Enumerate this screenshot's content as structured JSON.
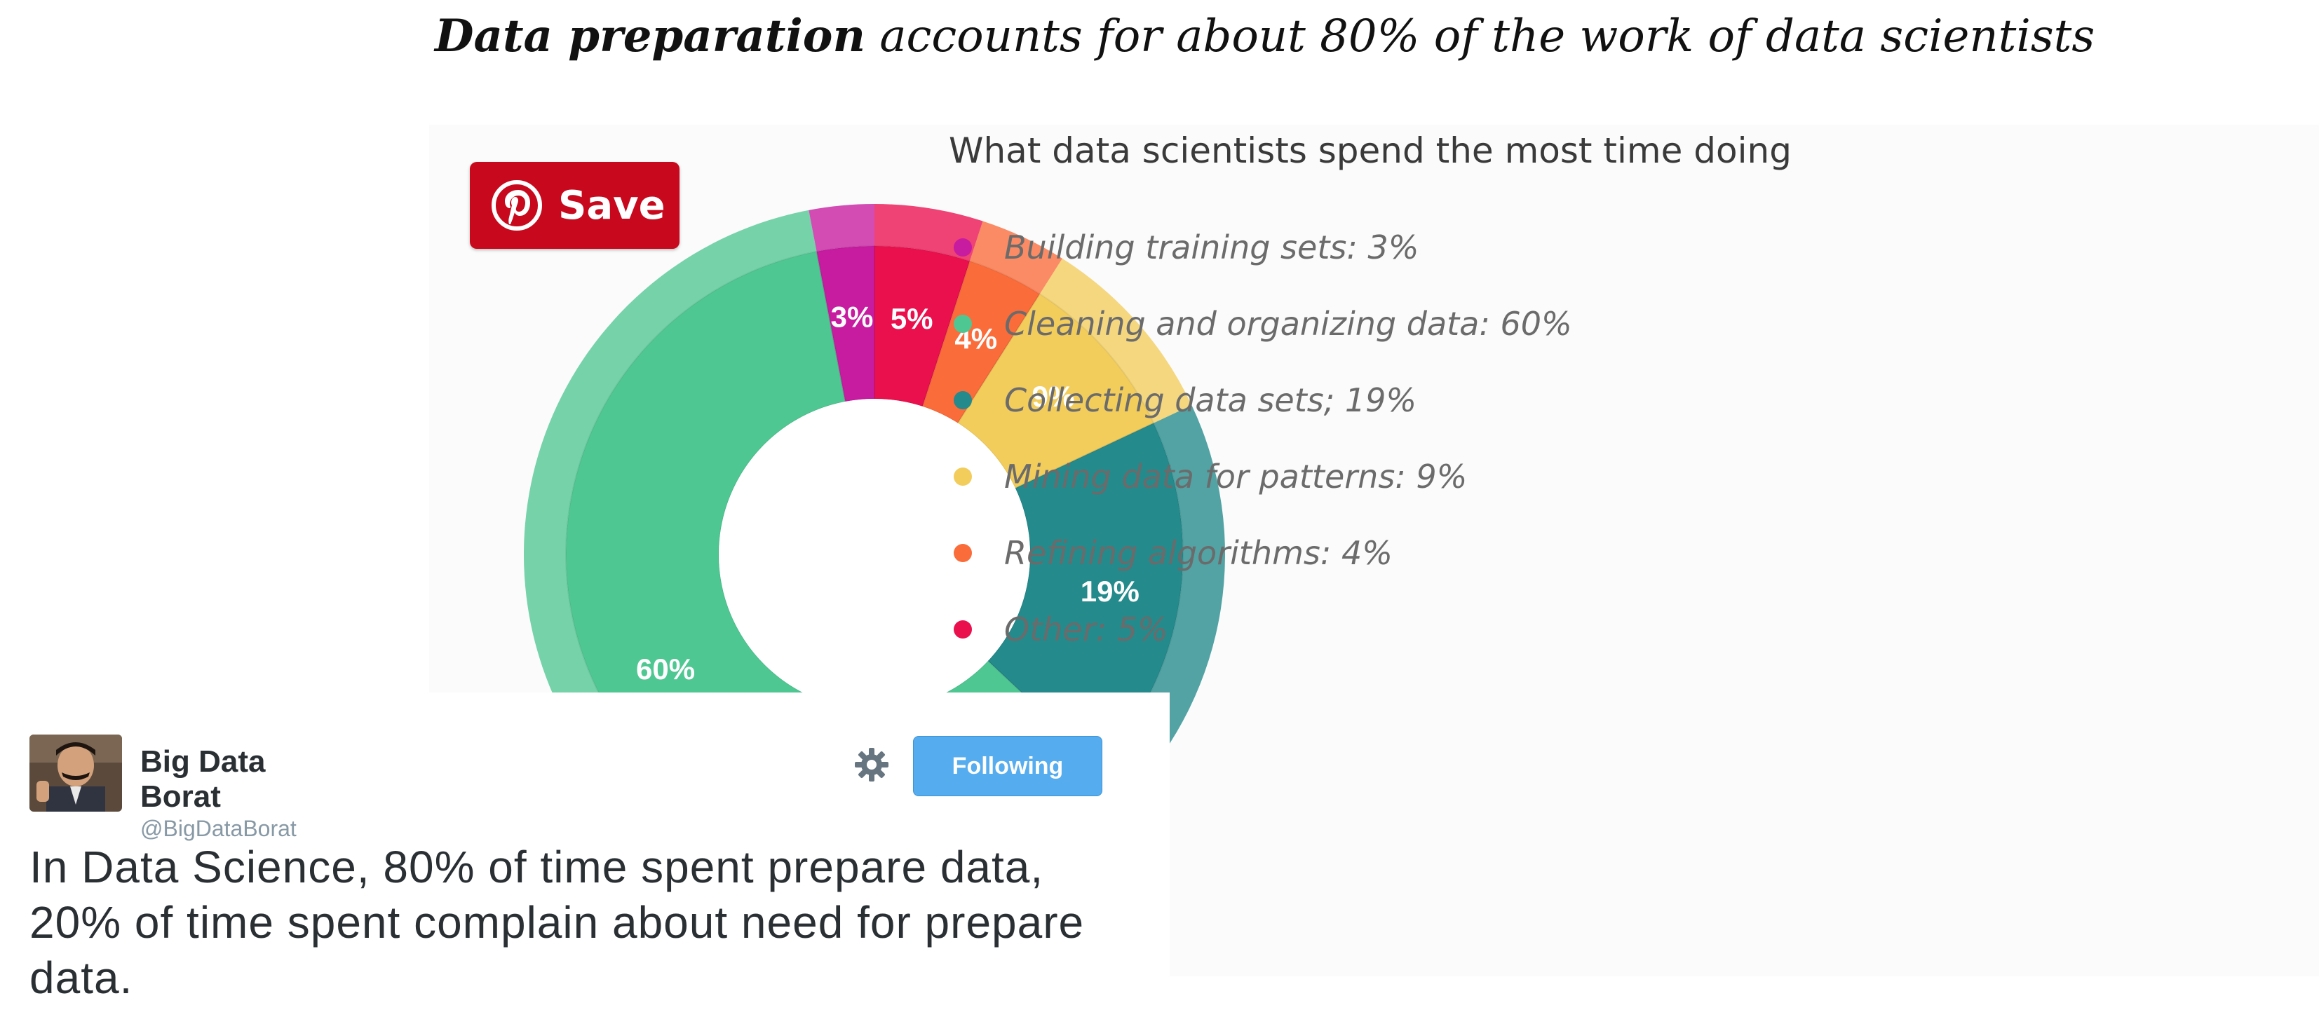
{
  "headline": {
    "bold": "Data preparation",
    "rest": " accounts for about 80% of the work of data scientists"
  },
  "save_button": {
    "label": "Save",
    "icon": "pinterest-icon",
    "color": "#c8081c"
  },
  "chart_data": {
    "type": "pie",
    "title": "What data scientists spend the most time doing",
    "legend_position": "right",
    "slices": [
      {
        "label": "Building training sets: 3%",
        "value": 3,
        "display": "3%",
        "color": "#c71ba0"
      },
      {
        "label": "Cleaning and organizing data: 60%",
        "value": 60,
        "display": "60%",
        "color": "#4fc792"
      },
      {
        "label": "Collecting data sets; 19%",
        "value": 19,
        "display": "19%",
        "color": "#248a8c"
      },
      {
        "label": "Mining data for patterns: 9%",
        "value": 9,
        "display": "9%",
        "color": "#f2cd5c"
      },
      {
        "label": "Refining algorithms: 4%",
        "value": 4,
        "display": "4%",
        "color": "#fa6c3a"
      },
      {
        "label": "Other: 5%",
        "value": 5,
        "display": "5%",
        "color": "#ea104e"
      }
    ],
    "clockwise_order_from_top": [
      "Other: 5%",
      "Refining algorithms: 4%",
      "Mining data for patterns: 9%",
      "Collecting data sets; 19%",
      "Cleaning and organizing data: 60%",
      "Building training sets: 3%"
    ]
  },
  "tweet": {
    "display_name": "Big Data Borat",
    "handle": "@BigDataBorat",
    "follow_label": "Following",
    "settings_icon": "gear-icon",
    "text": "In Data Science, 80% of time spent prepare data, 20% of time spent complain about need for prepare data.",
    "accent": "#55acee"
  }
}
